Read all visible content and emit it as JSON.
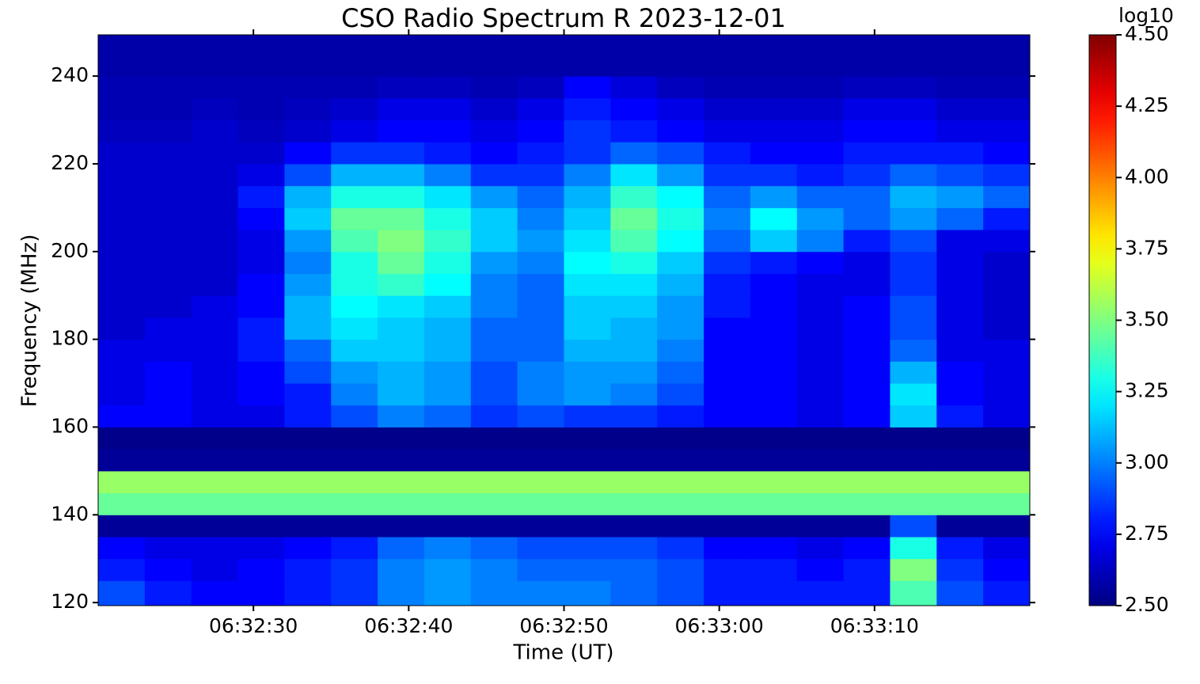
{
  "chart_data": {
    "type": "heatmap",
    "title": "CSO Radio Spectrum R 2023-12-01",
    "x_label": "Time (UT)",
    "y_label": "Frequency (MHz)",
    "colorbar_label": "log10",
    "colormap": "jet",
    "xlim": [
      "06:32:20",
      "06:33:20"
    ],
    "xticks": [
      "06:32:30",
      "06:32:40",
      "06:32:50",
      "06:33:00",
      "06:33:10"
    ],
    "ylim": [
      119.3,
      249.4
    ],
    "yticks": [
      120,
      140,
      160,
      180,
      200,
      220,
      240
    ],
    "clim": [
      2.5,
      4.5
    ],
    "cticks": [
      {
        "value": 2.5,
        "label": "2.50"
      },
      {
        "value": 2.75,
        "label": "2.75"
      },
      {
        "value": 3,
        "label": "3.00"
      },
      {
        "value": 3.25,
        "label": "3.25"
      },
      {
        "value": 3.5,
        "label": "3.50"
      },
      {
        "value": 3.75,
        "label": "3.75"
      },
      {
        "value": 4,
        "label": "4.00"
      },
      {
        "value": 4.25,
        "label": "4.25"
      },
      {
        "value": 4.5,
        "label": "4.50"
      }
    ],
    "x": [
      "06:32:20",
      "06:32:23",
      "06:32:26",
      "06:32:29",
      "06:32:32",
      "06:32:35",
      "06:32:38",
      "06:32:41",
      "06:32:44",
      "06:32:47",
      "06:32:50",
      "06:32:53",
      "06:32:56",
      "06:32:59",
      "06:33:02",
      "06:33:05",
      "06:33:08",
      "06:33:11",
      "06:33:14",
      "06:33:17"
    ],
    "y": [
      120,
      125,
      130,
      135,
      140,
      145,
      150,
      155,
      160,
      165,
      170,
      175,
      180,
      185,
      190,
      195,
      200,
      205,
      210,
      215,
      220,
      225,
      230,
      235,
      240,
      245
    ],
    "values": [
      [
        2.9,
        2.8,
        2.75,
        2.75,
        2.8,
        2.85,
        3.0,
        3.05,
        3.0,
        3.0,
        3.0,
        2.95,
        2.9,
        2.8,
        2.8,
        2.8,
        2.8,
        3.4,
        2.9,
        2.8
      ],
      [
        2.8,
        2.75,
        2.7,
        2.75,
        2.8,
        2.85,
        3.0,
        3.05,
        3.0,
        2.95,
        2.95,
        2.95,
        2.9,
        2.8,
        2.8,
        2.75,
        2.8,
        3.5,
        2.85,
        2.75
      ],
      [
        2.75,
        2.7,
        2.7,
        2.7,
        2.75,
        2.8,
        2.95,
        3.0,
        2.95,
        2.9,
        2.9,
        2.9,
        2.85,
        2.75,
        2.75,
        2.7,
        2.75,
        3.3,
        2.8,
        2.7
      ],
      [
        2.55,
        2.55,
        2.55,
        2.55,
        2.55,
        2.55,
        2.55,
        2.55,
        2.55,
        2.55,
        2.55,
        2.55,
        2.55,
        2.55,
        2.55,
        2.55,
        2.55,
        2.9,
        2.55,
        2.55
      ],
      [
        3.45,
        3.45,
        3.45,
        3.45,
        3.45,
        3.45,
        3.45,
        3.45,
        3.45,
        3.45,
        3.45,
        3.45,
        3.45,
        3.45,
        3.45,
        3.45,
        3.45,
        3.45,
        3.45,
        3.45
      ],
      [
        3.55,
        3.55,
        3.55,
        3.55,
        3.55,
        3.55,
        3.55,
        3.55,
        3.55,
        3.55,
        3.55,
        3.55,
        3.55,
        3.55,
        3.55,
        3.55,
        3.55,
        3.55,
        3.55,
        3.55
      ],
      [
        2.55,
        2.55,
        2.55,
        2.55,
        2.55,
        2.55,
        2.55,
        2.55,
        2.55,
        2.55,
        2.55,
        2.55,
        2.55,
        2.55,
        2.55,
        2.55,
        2.55,
        2.55,
        2.55,
        2.55
      ],
      [
        2.52,
        2.52,
        2.52,
        2.52,
        2.52,
        2.52,
        2.52,
        2.52,
        2.52,
        2.52,
        2.52,
        2.52,
        2.52,
        2.52,
        2.52,
        2.52,
        2.52,
        2.52,
        2.52,
        2.52
      ],
      [
        2.75,
        2.75,
        2.7,
        2.7,
        2.8,
        2.9,
        3.0,
        2.95,
        2.85,
        2.9,
        2.85,
        2.85,
        2.8,
        2.75,
        2.75,
        2.7,
        2.75,
        3.15,
        2.8,
        2.7
      ],
      [
        2.7,
        2.75,
        2.7,
        2.75,
        2.8,
        3.0,
        3.1,
        3.05,
        2.9,
        3.0,
        3.05,
        3.0,
        2.9,
        2.75,
        2.75,
        2.7,
        2.75,
        3.2,
        2.75,
        2.7
      ],
      [
        2.7,
        2.75,
        2.7,
        2.75,
        2.9,
        3.05,
        3.1,
        3.05,
        2.9,
        3.0,
        3.05,
        3.05,
        2.95,
        2.75,
        2.75,
        2.7,
        2.75,
        3.1,
        2.75,
        2.7
      ],
      [
        2.7,
        2.7,
        2.7,
        2.8,
        2.95,
        3.15,
        3.15,
        3.1,
        2.95,
        2.95,
        3.1,
        3.1,
        3.0,
        2.75,
        2.75,
        2.7,
        2.75,
        2.95,
        2.7,
        2.7
      ],
      [
        2.65,
        2.7,
        2.7,
        2.8,
        3.1,
        3.2,
        3.15,
        3.1,
        2.95,
        2.95,
        3.15,
        3.1,
        3.05,
        2.75,
        2.75,
        2.7,
        2.75,
        2.9,
        2.7,
        2.65
      ],
      [
        2.65,
        2.65,
        2.7,
        2.75,
        3.1,
        3.25,
        3.2,
        3.15,
        3.0,
        2.95,
        3.15,
        3.15,
        3.05,
        2.8,
        2.75,
        2.7,
        2.75,
        2.9,
        2.7,
        2.65
      ],
      [
        2.65,
        2.65,
        2.65,
        2.75,
        3.05,
        3.3,
        3.35,
        3.25,
        3.0,
        2.95,
        3.2,
        3.2,
        3.1,
        2.8,
        2.75,
        2.7,
        2.7,
        2.85,
        2.7,
        2.65
      ],
      [
        2.65,
        2.65,
        2.65,
        2.7,
        3.0,
        3.3,
        3.45,
        3.3,
        3.05,
        3.0,
        3.25,
        3.3,
        3.15,
        2.85,
        2.8,
        2.75,
        2.7,
        2.85,
        2.7,
        2.65
      ],
      [
        2.65,
        2.65,
        2.65,
        2.7,
        3.05,
        3.4,
        3.5,
        3.35,
        3.15,
        3.05,
        3.2,
        3.4,
        3.25,
        2.95,
        3.15,
        3.0,
        2.8,
        2.9,
        2.7,
        2.7
      ],
      [
        2.65,
        2.65,
        2.65,
        2.75,
        3.15,
        3.45,
        3.45,
        3.3,
        3.15,
        3.0,
        3.15,
        3.45,
        3.3,
        3.0,
        3.25,
        3.05,
        2.95,
        3.05,
        2.95,
        2.8
      ],
      [
        2.65,
        2.65,
        2.65,
        2.8,
        3.1,
        3.3,
        3.3,
        3.2,
        3.05,
        2.95,
        3.1,
        3.35,
        3.25,
        2.95,
        3.05,
        2.95,
        2.95,
        3.1,
        3.05,
        2.95
      ],
      [
        2.65,
        2.65,
        2.65,
        2.7,
        2.9,
        3.1,
        3.1,
        3.0,
        2.85,
        2.85,
        3.0,
        3.2,
        3.05,
        2.85,
        2.85,
        2.8,
        2.85,
        2.95,
        2.9,
        2.85
      ],
      [
        2.65,
        2.65,
        2.65,
        2.65,
        2.75,
        2.85,
        2.85,
        2.8,
        2.75,
        2.8,
        2.85,
        2.95,
        2.9,
        2.8,
        2.75,
        2.75,
        2.8,
        2.8,
        2.8,
        2.75
      ],
      [
        2.62,
        2.62,
        2.65,
        2.62,
        2.65,
        2.7,
        2.75,
        2.75,
        2.7,
        2.75,
        2.85,
        2.8,
        2.75,
        2.7,
        2.7,
        2.7,
        2.75,
        2.75,
        2.7,
        2.7
      ],
      [
        2.6,
        2.6,
        2.62,
        2.6,
        2.62,
        2.65,
        2.7,
        2.7,
        2.65,
        2.7,
        2.8,
        2.75,
        2.7,
        2.65,
        2.65,
        2.65,
        2.7,
        2.7,
        2.65,
        2.65
      ],
      [
        2.6,
        2.6,
        2.6,
        2.6,
        2.6,
        2.6,
        2.62,
        2.62,
        2.6,
        2.62,
        2.75,
        2.68,
        2.62,
        2.6,
        2.6,
        2.6,
        2.62,
        2.62,
        2.6,
        2.6
      ],
      [
        2.58,
        2.58,
        2.58,
        2.58,
        2.58,
        2.58,
        2.58,
        2.58,
        2.58,
        2.58,
        2.58,
        2.58,
        2.58,
        2.58,
        2.58,
        2.58,
        2.58,
        2.58,
        2.58,
        2.58
      ],
      [
        2.58,
        2.58,
        2.58,
        2.58,
        2.58,
        2.58,
        2.58,
        2.58,
        2.58,
        2.58,
        2.58,
        2.58,
        2.58,
        2.58,
        2.58,
        2.58,
        2.58,
        2.58,
        2.58,
        2.58
      ]
    ]
  }
}
